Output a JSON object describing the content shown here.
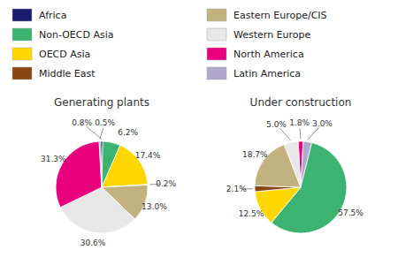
{
  "chart_data": [
    {
      "type": "pie",
      "title": "Generating plants",
      "values": [
        0.8,
        6.2,
        17.4,
        0.2,
        13.0,
        30.6,
        31.3,
        0.5
      ],
      "value_labels": [
        "0.8%",
        "6.2%",
        "17.4%",
        "0.2%",
        "13.0%",
        "30.6%",
        "31.3%",
        "0.5%"
      ],
      "colors": [
        "#1a1a6e",
        "#3cb371",
        "#ffd700",
        "#8b4513",
        "#c2b280",
        "#e8e8e8",
        "#e8007d",
        "#3cb371"
      ],
      "data_labels": true
    },
    {
      "type": "pie",
      "title": "Under construction",
      "values": [
        1.8,
        3.0,
        57.5,
        12.5,
        2.1,
        18.7,
        5.0
      ],
      "value_labels": [
        "1.8%",
        "3.0%",
        "57.5%",
        "12.5%",
        "2.1%",
        "18.7%",
        "5.0%"
      ],
      "colors": [
        "#e8007d",
        "#b0a8cc",
        "#3cb371",
        "#ffd700",
        "#8b4513",
        "#c2b280",
        "#e8e8e8"
      ],
      "data_labels": true
    },
    {
      "type": "legend",
      "categories": [
        "Africa",
        "Non-OECD Asia",
        "OECD Asia",
        "Middle East",
        "Eastern Europe/CIS",
        "Western Europe",
        "North America",
        "Latin America"
      ],
      "colors": [
        "#1a1a6e",
        "#3cb371",
        "#ffd700",
        "#8b4513",
        "#c2b280",
        "#e8e8e8",
        "#e8007d",
        "#b0a8cc"
      ]
    }
  ]
}
